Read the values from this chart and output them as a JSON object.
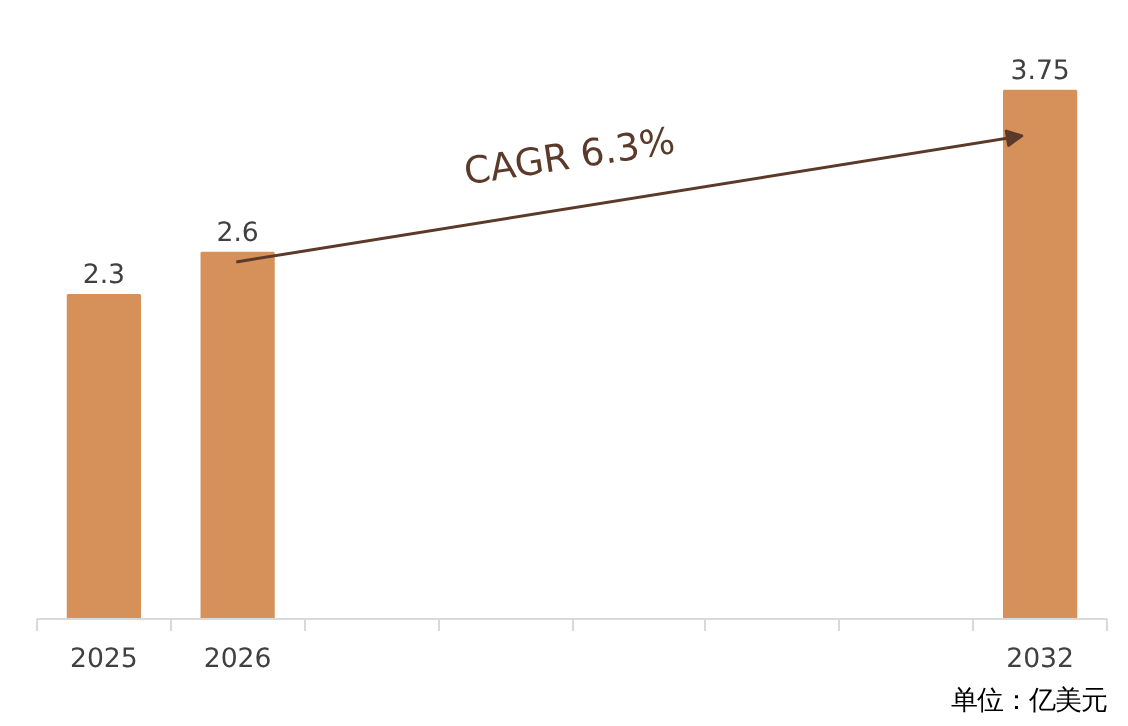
{
  "chart_data": {
    "type": "bar",
    "categories": [
      "2025",
      "2026",
      null,
      null,
      null,
      null,
      null,
      "2032"
    ],
    "values": [
      2.3,
      2.6,
      null,
      null,
      null,
      null,
      null,
      3.75
    ],
    "color": "#d6915a",
    "data_labels": true,
    "grid": false,
    "annotations": [
      "CAGR  6.3%",
      "单位：亿美元"
    ]
  }
}
